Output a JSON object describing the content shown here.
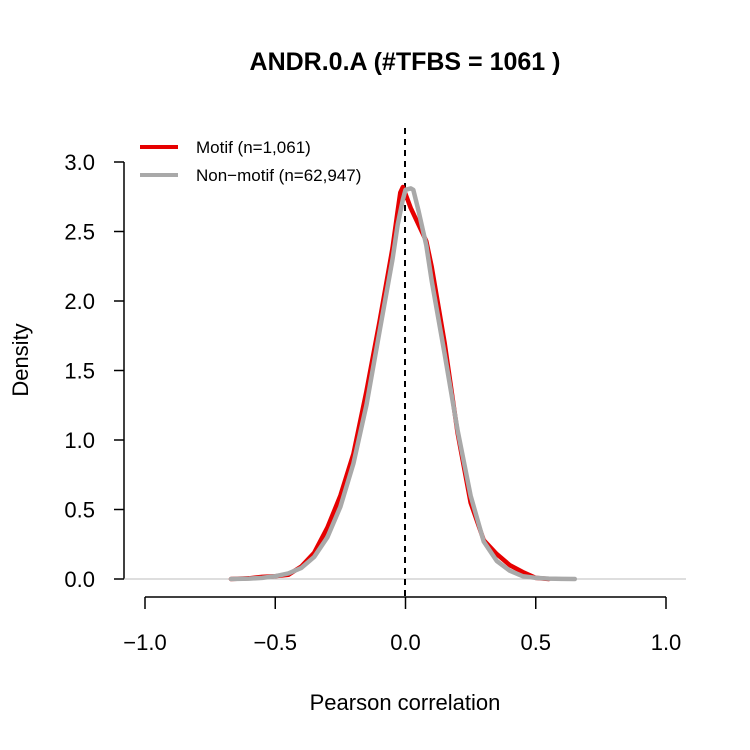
{
  "chart_data": {
    "type": "line",
    "title": "ANDR.0.A (#TFBS = 1061 )",
    "xlabel": "Pearson correlation",
    "ylabel": "Density",
    "xlim": [
      -1.0,
      1.0
    ],
    "ylim": [
      0,
      3.0
    ],
    "x_ticks": [
      "−1.0",
      "−0.5",
      "0.0",
      "0.5",
      "1.0"
    ],
    "y_ticks": [
      "0.0",
      "0.5",
      "1.0",
      "1.5",
      "2.0",
      "2.5",
      "3.0"
    ],
    "reference_line_x": 0.0,
    "legend_position": "top-left",
    "series": [
      {
        "name": "Motif (n=1,061)",
        "color": "#e60000",
        "points": [
          [
            -0.67,
            0.0
          ],
          [
            -0.6,
            0.005
          ],
          [
            -0.55,
            0.015
          ],
          [
            -0.5,
            0.02
          ],
          [
            -0.45,
            0.03
          ],
          [
            -0.4,
            0.09
          ],
          [
            -0.35,
            0.19
          ],
          [
            -0.3,
            0.37
          ],
          [
            -0.25,
            0.6
          ],
          [
            -0.2,
            0.9
          ],
          [
            -0.15,
            1.35
          ],
          [
            -0.1,
            1.85
          ],
          [
            -0.05,
            2.38
          ],
          [
            -0.03,
            2.65
          ],
          [
            -0.02,
            2.78
          ],
          [
            -0.01,
            2.82
          ],
          [
            0.0,
            2.77
          ],
          [
            0.02,
            2.67
          ],
          [
            0.05,
            2.55
          ],
          [
            0.08,
            2.43
          ],
          [
            0.1,
            2.25
          ],
          [
            0.15,
            1.7
          ],
          [
            0.2,
            1.05
          ],
          [
            0.25,
            0.55
          ],
          [
            0.3,
            0.28
          ],
          [
            0.35,
            0.18
          ],
          [
            0.4,
            0.1
          ],
          [
            0.45,
            0.05
          ],
          [
            0.5,
            0.008
          ],
          [
            0.55,
            0.0
          ]
        ]
      },
      {
        "name": "Non−motif (n=62,947)",
        "color": "#a9a9a9",
        "points": [
          [
            -0.67,
            0.0
          ],
          [
            -0.6,
            0.003
          ],
          [
            -0.55,
            0.008
          ],
          [
            -0.5,
            0.02
          ],
          [
            -0.45,
            0.04
          ],
          [
            -0.4,
            0.08
          ],
          [
            -0.35,
            0.16
          ],
          [
            -0.3,
            0.3
          ],
          [
            -0.25,
            0.52
          ],
          [
            -0.2,
            0.83
          ],
          [
            -0.15,
            1.25
          ],
          [
            -0.1,
            1.78
          ],
          [
            -0.05,
            2.3
          ],
          [
            -0.03,
            2.55
          ],
          [
            -0.01,
            2.73
          ],
          [
            0.0,
            2.8
          ],
          [
            0.02,
            2.81
          ],
          [
            0.03,
            2.8
          ],
          [
            0.05,
            2.65
          ],
          [
            0.08,
            2.4
          ],
          [
            0.1,
            2.15
          ],
          [
            0.15,
            1.62
          ],
          [
            0.2,
            1.07
          ],
          [
            0.25,
            0.6
          ],
          [
            0.3,
            0.27
          ],
          [
            0.35,
            0.13
          ],
          [
            0.4,
            0.06
          ],
          [
            0.45,
            0.02
          ],
          [
            0.5,
            0.008
          ],
          [
            0.55,
            0.003
          ],
          [
            0.6,
            0.001
          ],
          [
            0.65,
            0.0
          ]
        ]
      }
    ]
  }
}
